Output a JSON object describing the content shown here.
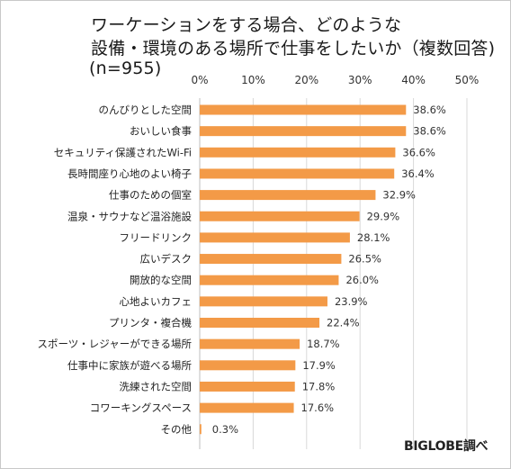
{
  "title": {
    "line1": "ワーケーションをする場合、どのような",
    "line2": "設備・環境のある場所で仕事をしたいか（複数回答)",
    "sample": "(n=955)"
  },
  "source_note": "BIGLOBE調べ",
  "colors": {
    "bar": "#f39a47",
    "gridline": "#d9d9d9",
    "axis": "#bfbfbf"
  },
  "chart_data": {
    "type": "bar",
    "orientation": "horizontal",
    "unit": "%",
    "xlim": [
      0,
      50
    ],
    "ticks": [
      "0%",
      "10%",
      "20%",
      "30%",
      "40%",
      "50%"
    ],
    "tick_values": [
      0,
      10,
      20,
      30,
      40,
      50
    ],
    "grid": true,
    "categories": [
      "のんびりとした空間",
      "おいしい食事",
      "セキュリティ保護されたWi-Fi",
      "長時間座り心地のよい椅子",
      "仕事のための個室",
      "温泉・サウナなど温浴施設",
      "フリードリンク",
      "広いデスク",
      "開放的な空間",
      "心地よいカフェ",
      "プリンタ・複合機",
      "スポーツ・レジャーができる場所",
      "仕事中に家族が遊べる場所",
      "洗練された空間",
      "コワーキングスペース",
      "その他"
    ],
    "values": [
      38.6,
      38.6,
      36.6,
      36.4,
      32.9,
      29.9,
      28.1,
      26.5,
      26.0,
      23.9,
      22.4,
      18.7,
      17.9,
      17.8,
      17.6,
      0.3
    ],
    "value_labels": [
      "38.6%",
      "38.6%",
      "36.6%",
      "36.4%",
      "32.9%",
      "29.9%",
      "28.1%",
      "26.5%",
      "26.0%",
      "23.9%",
      "22.4%",
      "18.7%",
      "17.9%",
      "17.8%",
      "17.6%",
      "0.3%"
    ]
  }
}
